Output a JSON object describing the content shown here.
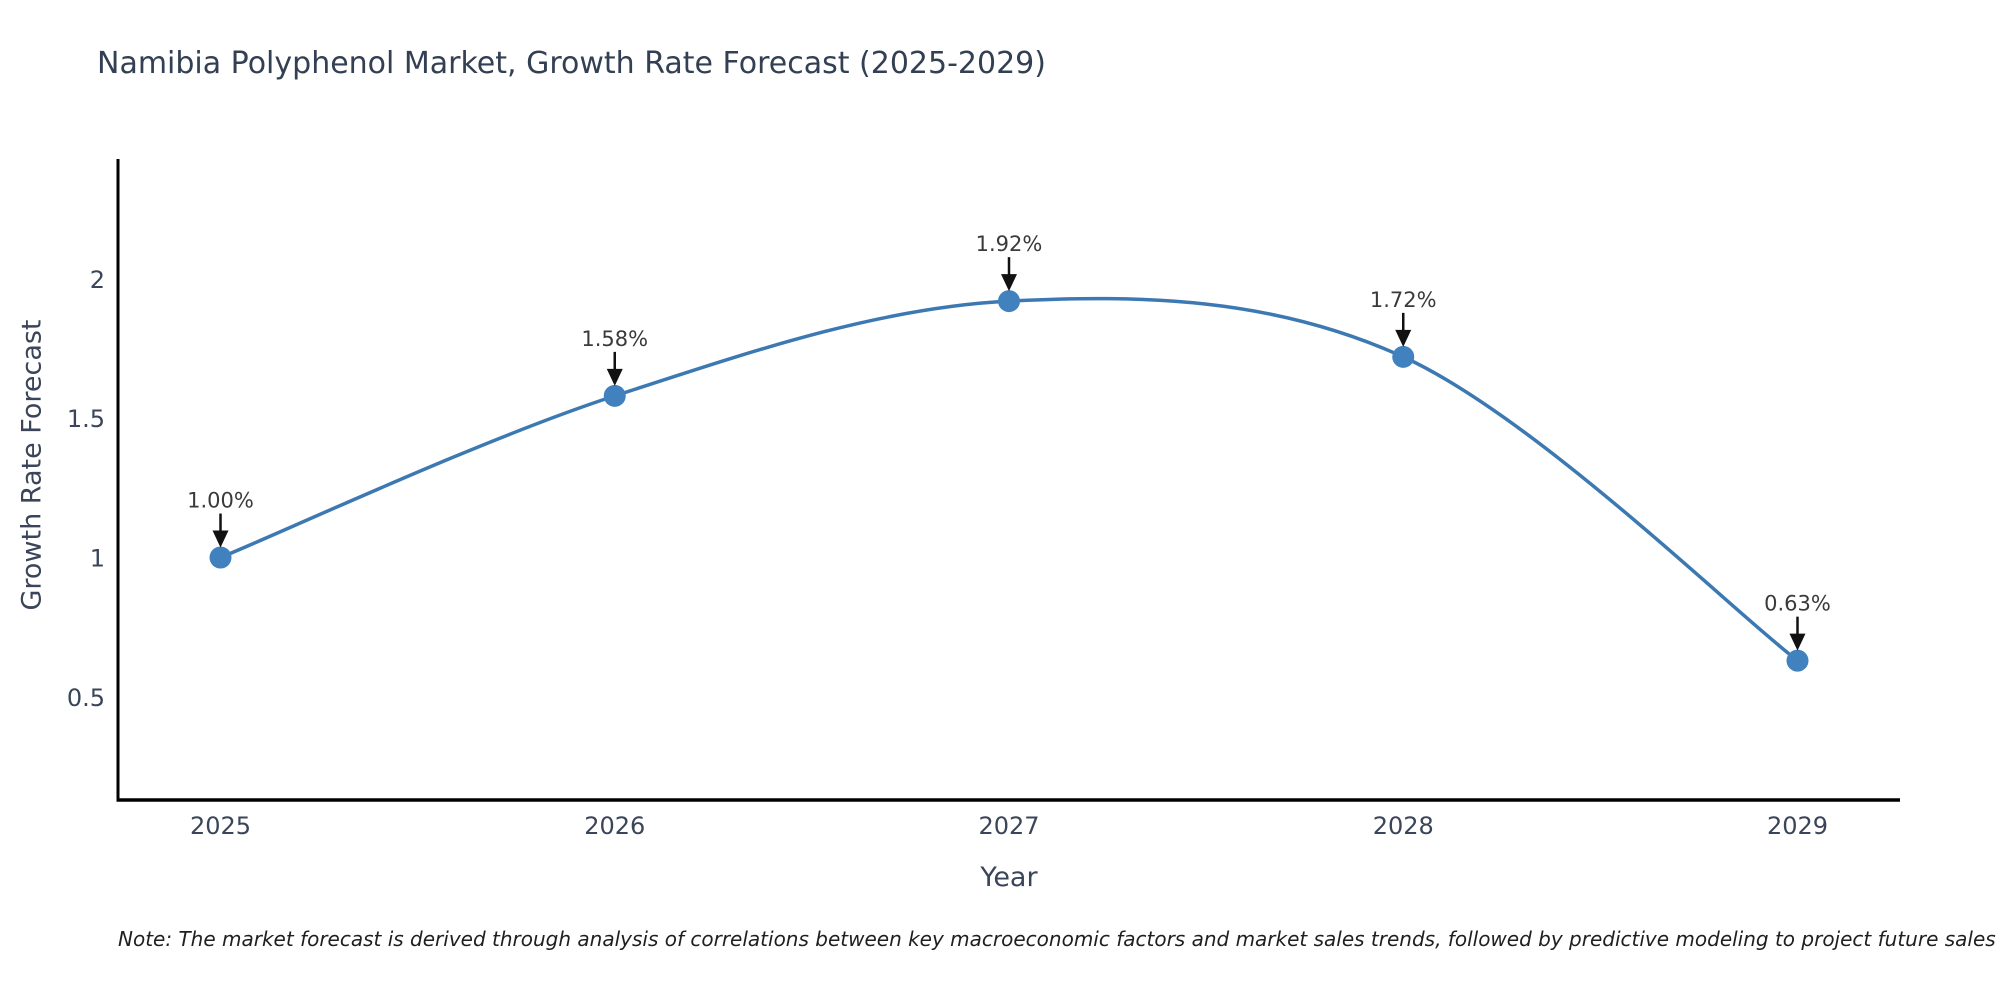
{
  "title": "Namibia Polyphenol Market, Growth Rate Forecast (2025-2029)",
  "axes": {
    "xlabel": "Year",
    "ylabel": "Growth Rate Forecast"
  },
  "footnote": "Note: The market forecast is derived through analysis of correlations between key macroeconomic factors and market sales trends, followed by predictive modeling to project future sales",
  "chart_data": {
    "type": "line",
    "title": "Namibia Polyphenol Market, Growth Rate Forecast (2025-2029)",
    "xlabel": "Year",
    "ylabel": "Growth Rate Forecast",
    "x": [
      2025,
      2026,
      2027,
      2028,
      2029
    ],
    "series": [
      {
        "name": "Growth Rate Forecast",
        "values": [
          1.0,
          1.58,
          1.92,
          1.72,
          0.63
        ]
      }
    ],
    "annotations": [
      "1.00%",
      "1.58%",
      "1.92%",
      "1.72%",
      "0.63%"
    ],
    "xticks": [
      "2025",
      "2026",
      "2027",
      "2028",
      "2029"
    ],
    "yticks": [
      0.5,
      1,
      1.5,
      2
    ],
    "ytick_labels": [
      "0.5",
      "1",
      "1.5",
      "2"
    ],
    "xlim": [
      2024.74,
      2029.26
    ],
    "ylim": [
      0.13,
      2.43
    ],
    "grid": false,
    "legend": false,
    "smooth_line": true,
    "colors": {
      "line": "#3c79b2",
      "marker": "#4181bd",
      "axis": "#000000",
      "tick_text": "#3b4559",
      "annotation_text": "#3a3a3a",
      "annotation_arrow": "#111111",
      "background": "#ffffff"
    }
  }
}
